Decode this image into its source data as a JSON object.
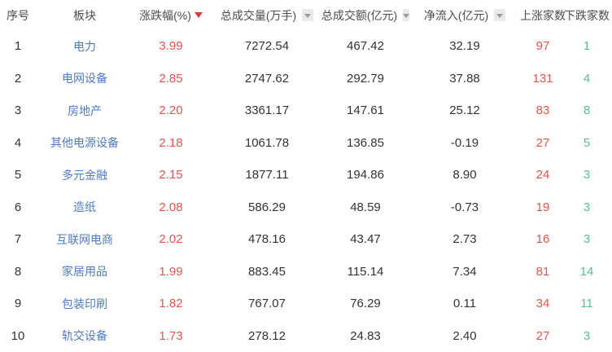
{
  "table": {
    "columns": [
      {
        "label": "序号",
        "sort": "none"
      },
      {
        "label": "板块",
        "sort": "none"
      },
      {
        "label": "涨跌幅(%)",
        "sort": "desc_active"
      },
      {
        "label": "总成交量(万手)",
        "sort": "inactive"
      },
      {
        "label": "总成交额(亿元)",
        "sort": "inactive"
      },
      {
        "label": "净流入(亿元)",
        "sort": "inactive"
      },
      {
        "label": "上涨家数",
        "sort": "none"
      },
      {
        "label": "下跌家数",
        "sort": "none"
      }
    ],
    "rows": [
      {
        "index": "1",
        "sector": "电力",
        "change_pct": "3.99",
        "volume": "7272.54",
        "turnover": "467.42",
        "net_inflow": "32.19",
        "up_count": "97",
        "down_count": "1"
      },
      {
        "index": "2",
        "sector": "电网设备",
        "change_pct": "2.85",
        "volume": "2747.62",
        "turnover": "292.79",
        "net_inflow": "37.88",
        "up_count": "131",
        "down_count": "4"
      },
      {
        "index": "3",
        "sector": "房地产",
        "change_pct": "2.20",
        "volume": "3361.17",
        "turnover": "147.61",
        "net_inflow": "25.12",
        "up_count": "83",
        "down_count": "8"
      },
      {
        "index": "4",
        "sector": "其他电源设备",
        "change_pct": "2.18",
        "volume": "1061.78",
        "turnover": "136.85",
        "net_inflow": "-0.19",
        "up_count": "27",
        "down_count": "5"
      },
      {
        "index": "5",
        "sector": "多元金融",
        "change_pct": "2.15",
        "volume": "1877.11",
        "turnover": "194.86",
        "net_inflow": "8.90",
        "up_count": "24",
        "down_count": "3"
      },
      {
        "index": "6",
        "sector": "造纸",
        "change_pct": "2.08",
        "volume": "586.29",
        "turnover": "48.59",
        "net_inflow": "-0.73",
        "up_count": "19",
        "down_count": "3"
      },
      {
        "index": "7",
        "sector": "互联网电商",
        "change_pct": "2.02",
        "volume": "478.16",
        "turnover": "43.47",
        "net_inflow": "2.73",
        "up_count": "16",
        "down_count": "3"
      },
      {
        "index": "8",
        "sector": "家居用品",
        "change_pct": "1.99",
        "volume": "883.45",
        "turnover": "115.14",
        "net_inflow": "7.34",
        "up_count": "81",
        "down_count": "14"
      },
      {
        "index": "9",
        "sector": "包装印刷",
        "change_pct": "1.82",
        "volume": "767.07",
        "turnover": "76.29",
        "net_inflow": "0.11",
        "up_count": "34",
        "down_count": "11"
      },
      {
        "index": "10",
        "sector": "轨交设备",
        "change_pct": "1.73",
        "volume": "278.12",
        "turnover": "24.83",
        "net_inflow": "2.40",
        "up_count": "27",
        "down_count": "3"
      }
    ]
  },
  "icons": {
    "sort_desc": "▼",
    "sort_toggle": "▼"
  },
  "colors": {
    "up_red": "#e9534e",
    "down_green": "#56c28c",
    "sector_blue": "#4e7bc0",
    "header_text": "#4c4c4c",
    "value_text": "#333333",
    "sort_active_arrow": "#d93a3a",
    "sort_inactive_bg": "#e9e9e9",
    "sort_inactive_arrow": "#9b9b9b",
    "background": "#ffffff"
  }
}
